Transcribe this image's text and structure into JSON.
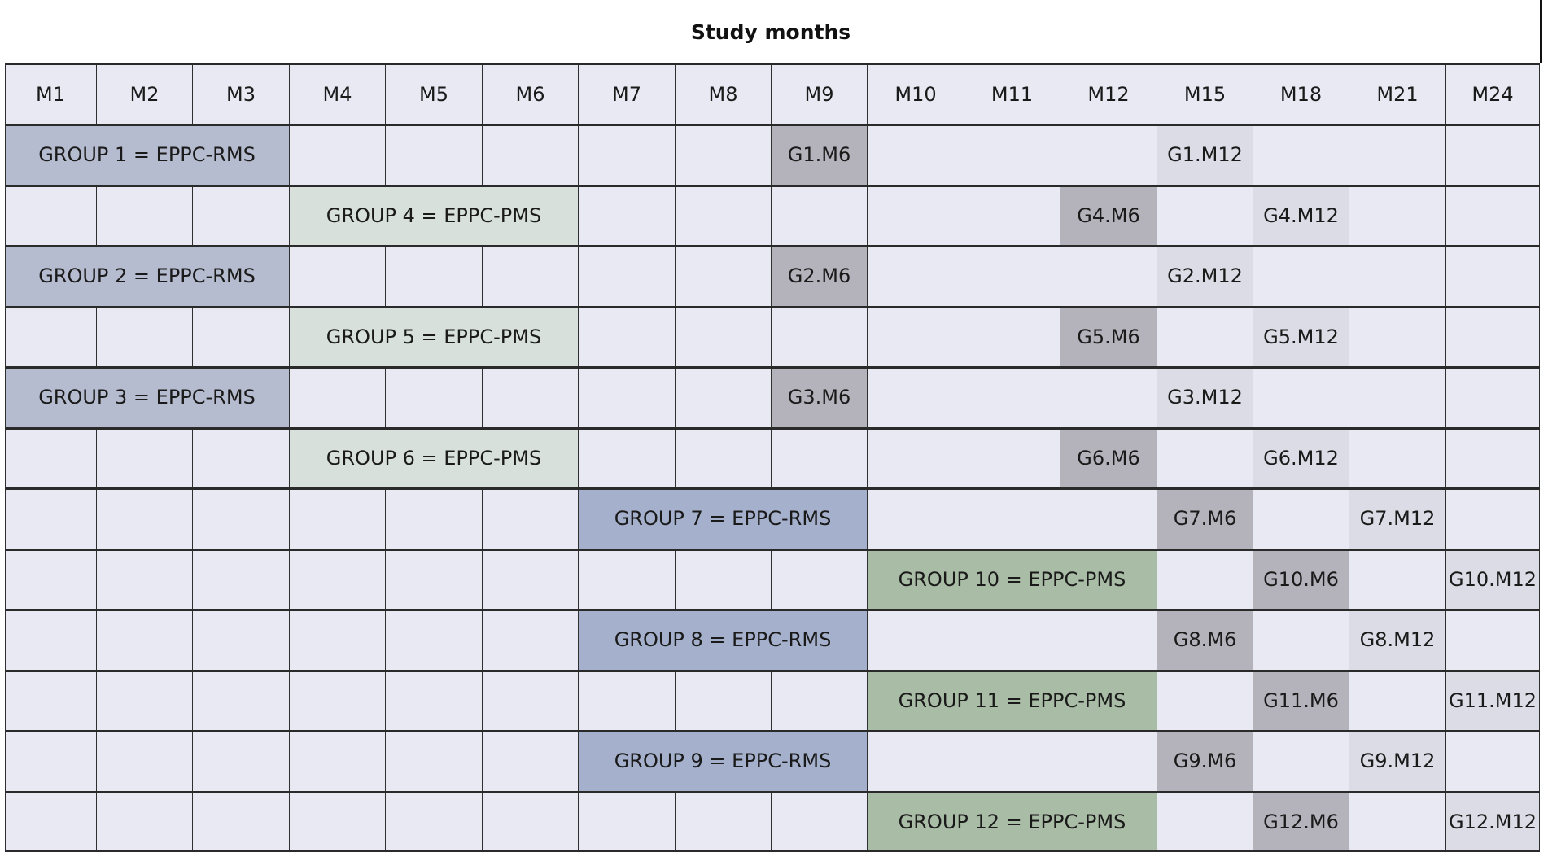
{
  "title": "Study months",
  "months": [
    "M1",
    "M2",
    "M3",
    "M4",
    "M5",
    "M6",
    "M7",
    "M8",
    "M9",
    "M10",
    "M11",
    "M12",
    "M15",
    "M18",
    "M21",
    "M24"
  ],
  "rows": [
    {
      "group": {
        "label": "GROUP 1 = EPPC-RMS",
        "start": 0,
        "span": 3,
        "kind": "rms1"
      },
      "m6": {
        "label": "G1.M6",
        "col": 8
      },
      "m12": {
        "label": "G1.M12",
        "col": 12
      }
    },
    {
      "group": {
        "label": "GROUP 4 = EPPC-PMS",
        "start": 3,
        "span": 3,
        "kind": "pms1"
      },
      "m6": {
        "label": "G4.M6",
        "col": 11
      },
      "m12": {
        "label": "G4.M12",
        "col": 13
      }
    },
    {
      "group": {
        "label": "GROUP 2 = EPPC-RMS",
        "start": 0,
        "span": 3,
        "kind": "rms1"
      },
      "m6": {
        "label": "G2.M6",
        "col": 8
      },
      "m12": {
        "label": "G2.M12",
        "col": 12
      }
    },
    {
      "group": {
        "label": "GROUP 5 = EPPC-PMS",
        "start": 3,
        "span": 3,
        "kind": "pms1"
      },
      "m6": {
        "label": "G5.M6",
        "col": 11
      },
      "m12": {
        "label": "G5.M12",
        "col": 13
      }
    },
    {
      "group": {
        "label": "GROUP 3 = EPPC-RMS",
        "start": 0,
        "span": 3,
        "kind": "rms1"
      },
      "m6": {
        "label": "G3.M6",
        "col": 8
      },
      "m12": {
        "label": "G3.M12",
        "col": 12
      }
    },
    {
      "group": {
        "label": "GROUP 6 = EPPC-PMS",
        "start": 3,
        "span": 3,
        "kind": "pms1"
      },
      "m6": {
        "label": "G6.M6",
        "col": 11
      },
      "m12": {
        "label": "G6.M12",
        "col": 13
      }
    },
    {
      "group": {
        "label": "GROUP 7 = EPPC-RMS",
        "start": 6,
        "span": 3,
        "kind": "rms2"
      },
      "m6": {
        "label": "G7.M6",
        "col": 12
      },
      "m12": {
        "label": "G7.M12",
        "col": 14
      }
    },
    {
      "group": {
        "label": "GROUP 10 = EPPC-PMS",
        "start": 9,
        "span": 3,
        "kind": "pms2"
      },
      "m6": {
        "label": "G10.M6",
        "col": 13
      },
      "m12": {
        "label": "G10.M12",
        "col": 15
      }
    },
    {
      "group": {
        "label": "GROUP 8 = EPPC-RMS",
        "start": 6,
        "span": 3,
        "kind": "rms2"
      },
      "m6": {
        "label": "G8.M6",
        "col": 12
      },
      "m12": {
        "label": "G8.M12",
        "col": 14
      }
    },
    {
      "group": {
        "label": "GROUP 11 = EPPC-PMS",
        "start": 9,
        "span": 3,
        "kind": "pms2"
      },
      "m6": {
        "label": "G11.M6",
        "col": 13
      },
      "m12": {
        "label": "G11.M12",
        "col": 15
      }
    },
    {
      "group": {
        "label": "GROUP 9 = EPPC-RMS",
        "start": 6,
        "span": 3,
        "kind": "rms2"
      },
      "m6": {
        "label": "G9.M6",
        "col": 12
      },
      "m12": {
        "label": "G9.M12",
        "col": 14
      }
    },
    {
      "group": {
        "label": "GROUP 12 = EPPC-PMS",
        "start": 9,
        "span": 3,
        "kind": "pms2"
      },
      "m6": {
        "label": "G12.M6",
        "col": 13
      },
      "m12": {
        "label": "G12.M12",
        "col": 15
      }
    }
  ],
  "colors": {
    "rms_early": "#b6bccf",
    "pms_early": "#d7e0da",
    "rms_late": "#a5b1cc",
    "pms_late": "#a9bca5",
    "followup_m6": "#b4b3bb",
    "followup_m12": "#dcdce6",
    "empty_cell": "#e8e9f3"
  }
}
